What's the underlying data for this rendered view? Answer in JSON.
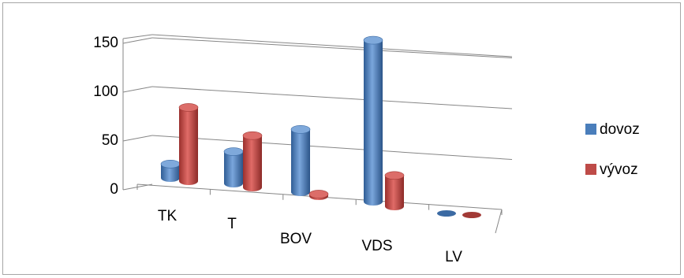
{
  "chart_data": {
    "type": "bar",
    "style": "3d-cylinder",
    "categories": [
      "TK",
      "T",
      "BOV",
      "VDS",
      "LV"
    ],
    "series": [
      {
        "name": "dovoz",
        "values": [
          14,
          32,
          63,
          162,
          1
        ],
        "color": "#4a7ebb"
      },
      {
        "name": "vývoz",
        "values": [
          74,
          52,
          2,
          31,
          1
        ],
        "color": "#be4b48"
      }
    ],
    "y_ticks": [
      "0",
      "50",
      "100",
      "150"
    ],
    "ylim": [
      0,
      150
    ],
    "grid": true,
    "legend_position": "right",
    "title": "",
    "xlabel": "",
    "ylabel": ""
  }
}
